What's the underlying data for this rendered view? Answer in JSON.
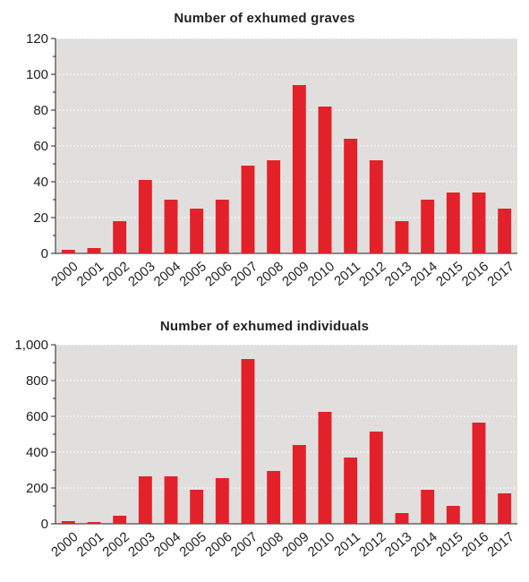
{
  "chart_data": [
    {
      "type": "bar",
      "title": "Number of exhumed graves",
      "xlabel": "",
      "ylabel": "",
      "categories": [
        "2000",
        "2001",
        "2002",
        "2003",
        "2004",
        "2005",
        "2006",
        "2007",
        "2008",
        "2009",
        "2010",
        "2011",
        "2012",
        "2013",
        "2014",
        "2015",
        "2016",
        "2017"
      ],
      "values": [
        2,
        3,
        18,
        41,
        30,
        25,
        30,
        49,
        52,
        94,
        82,
        64,
        52,
        18,
        30,
        34,
        34,
        25
      ],
      "ylim": [
        0,
        120
      ],
      "yticks": [
        0,
        20,
        40,
        60,
        80,
        100,
        120
      ],
      "ytick_labels": [
        "0",
        "20",
        "40",
        "60",
        "80",
        "100",
        "120"
      ],
      "grid": true,
      "colors": {
        "bar": "#e3212a",
        "plot_bg": "#e1dfdd",
        "grid": "#ffffff"
      }
    },
    {
      "type": "bar",
      "title": "Number of exhumed individuals",
      "xlabel": "",
      "ylabel": "",
      "categories": [
        "2000",
        "2001",
        "2002",
        "2003",
        "2004",
        "2005",
        "2006",
        "2007",
        "2008",
        "2009",
        "2010",
        "2011",
        "2012",
        "2013",
        "2014",
        "2015",
        "2016",
        "2017"
      ],
      "values": [
        15,
        10,
        45,
        265,
        265,
        190,
        255,
        920,
        295,
        440,
        625,
        370,
        515,
        60,
        190,
        100,
        565,
        170
      ],
      "ylim": [
        0,
        1000
      ],
      "yticks": [
        0,
        200,
        400,
        600,
        800,
        1000
      ],
      "ytick_labels": [
        "0",
        "200",
        "400",
        "600",
        "800",
        "1,000"
      ],
      "grid": true,
      "colors": {
        "bar": "#e3212a",
        "plot_bg": "#e1dfdd",
        "grid": "#ffffff"
      }
    }
  ]
}
